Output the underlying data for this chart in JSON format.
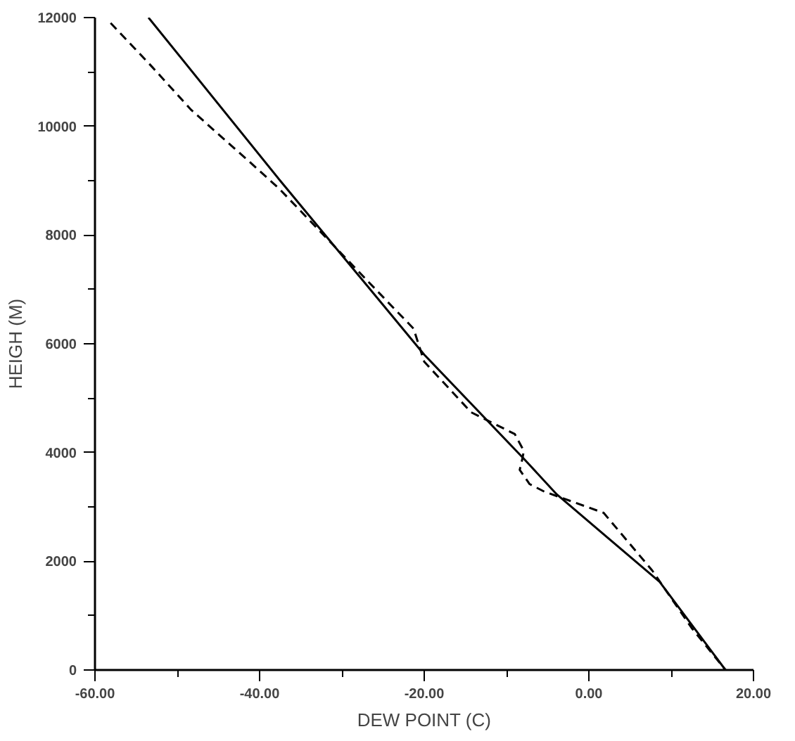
{
  "chart_data": {
    "type": "line",
    "xlabel": "DEW POINT (C)",
    "ylabel": "HEIGH (M)",
    "xlim": [
      -60,
      20
    ],
    "ylim": [
      0,
      12000
    ],
    "xticks": [
      {
        "value": -60,
        "label": "-60.00"
      },
      {
        "value": -50,
        "label": null
      },
      {
        "value": -40,
        "label": "-40.00"
      },
      {
        "value": -30,
        "label": null
      },
      {
        "value": -20,
        "label": "-20.00"
      },
      {
        "value": -10,
        "label": null
      },
      {
        "value": 0,
        "label": "0.00"
      },
      {
        "value": 10,
        "label": null
      },
      {
        "value": 20,
        "label": "20.00"
      }
    ],
    "yticks": [
      0,
      {
        "value": 1000,
        "label": null
      },
      2000,
      {
        "value": 3000,
        "label": null
      },
      4000,
      {
        "value": 5000,
        "label": null
      },
      6000,
      {
        "value": 7000,
        "label": null
      },
      8000,
      {
        "value": 9000,
        "label": null
      },
      10000,
      {
        "value": 11000,
        "label": null
      },
      12000
    ],
    "grid": false,
    "marker": "none",
    "series": [
      {
        "color": "#000000",
        "line_style": "solid",
        "x": [
          -53.5,
          -37.5,
          -20,
          -7.8,
          -3.9,
          8.6,
          16.6
        ],
        "values": [
          12000,
          9000,
          5800,
          3870,
          3230,
          1620,
          0
        ]
      },
      {
        "color": "#000000",
        "line_style": "dashed",
        "x": [
          -58.1,
          -53.1,
          -48.3,
          -41.1,
          -37.6,
          -24.5,
          -21.3,
          -20,
          -14.3,
          -9,
          -7.9,
          -8.1,
          -8.4,
          -7.2,
          -5.4,
          1.8,
          7.7,
          12.5,
          16.6
        ],
        "values": [
          11900,
          11100,
          10300,
          9330,
          8850,
          6780,
          6280,
          5670,
          4740,
          4340,
          4030,
          3870,
          3680,
          3420,
          3280,
          2890,
          1830,
          770,
          0
        ]
      }
    ]
  }
}
